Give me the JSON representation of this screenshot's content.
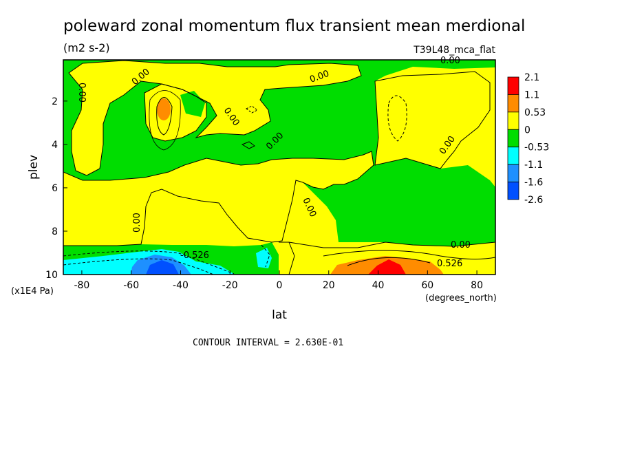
{
  "chart_data": {
    "type": "heatmap",
    "title": "poleward zonal momentum flux transient mean merdional",
    "units": "(m2 s-2)",
    "run_label": "T39L48_mca_flat",
    "xlabel": "lat",
    "x_units": "(degrees_north)",
    "ylabel": "plev",
    "y_units": "(x1E4 Pa)",
    "x_ticks": [
      "-80",
      "-60",
      "-40",
      "-20",
      "0",
      "20",
      "40",
      "60",
      "80"
    ],
    "x_tick_values": [
      -80,
      -60,
      -40,
      -20,
      0,
      20,
      40,
      60,
      80
    ],
    "y_ticks": [
      "2",
      "4",
      "6",
      "8",
      "10"
    ],
    "y_tick_values": [
      2,
      4,
      6,
      8,
      10
    ],
    "xlim": [
      -87.5,
      87.5
    ],
    "ylim": [
      0.1,
      10
    ],
    "y_inverted": true,
    "footer": "CONTOUR INTERVAL = 2.630E-01",
    "contour_labels": [
      "0.00",
      "0.00",
      "0.00",
      "0.00",
      "0.00",
      "0.00",
      "0.00",
      "0.00",
      "0.00",
      "0.00",
      "-0.526",
      "0.526"
    ],
    "colorbar": {
      "labels": [
        "2.1",
        "1.1",
        "0.53",
        "0",
        "-0.53",
        "-1.1",
        "-1.6",
        "-2.6"
      ],
      "colors": [
        "#ff0000",
        "#ff8c00",
        "#ffff00",
        "#00dd00",
        "#00ffff",
        "#1e90ff",
        "#0050ff"
      ]
    },
    "fields": {
      "positive_color": "#ffff00",
      "negative_color": "#00dd00",
      "strong_positive_color": "#ff8c00",
      "max_positive_color": "#ff0000",
      "weak_negative_color": "#00ffff",
      "strong_negative_color": "#1e90ff",
      "max_negative_color": "#0050ff"
    }
  }
}
